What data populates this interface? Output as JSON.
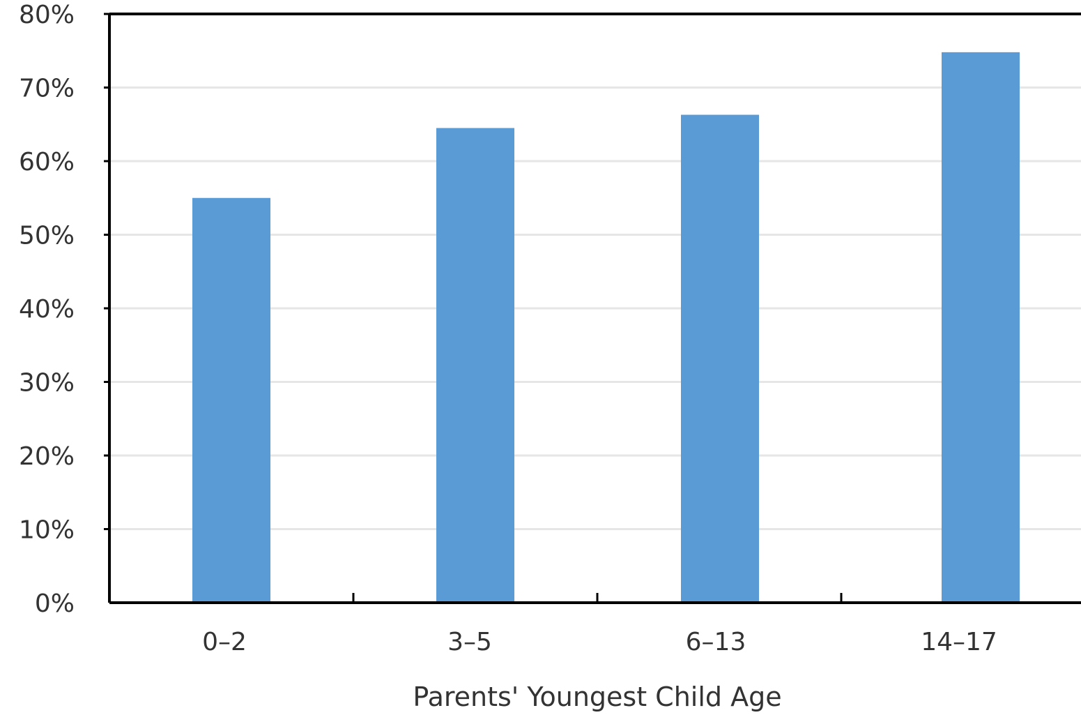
{
  "chart_data": {
    "type": "bar",
    "title": "",
    "xlabel": "Parents' Youngest Child Age",
    "ylabel": "",
    "categories": [
      "0–2",
      "3–5",
      "6–13",
      "14–17"
    ],
    "values": [
      0.55,
      0.645,
      0.663,
      0.748
    ],
    "ylim": [
      0,
      0.8
    ],
    "yticks": [
      {
        "value": 0,
        "label": "0%"
      },
      {
        "value": 0.1,
        "label": "10%"
      },
      {
        "value": 0.2,
        "label": "20%"
      },
      {
        "value": 0.3,
        "label": "30%"
      },
      {
        "value": 0.4,
        "label": "40%"
      },
      {
        "value": 0.5,
        "label": "50%"
      },
      {
        "value": 0.6,
        "label": "60%"
      },
      {
        "value": 0.7,
        "label": "70%"
      },
      {
        "value": 0.8,
        "label": "80%"
      }
    ],
    "grid": true,
    "legend": false,
    "bar_color": "#5b9bd5",
    "grid_color": "#e6e6e6",
    "axis_color": "#000000"
  }
}
